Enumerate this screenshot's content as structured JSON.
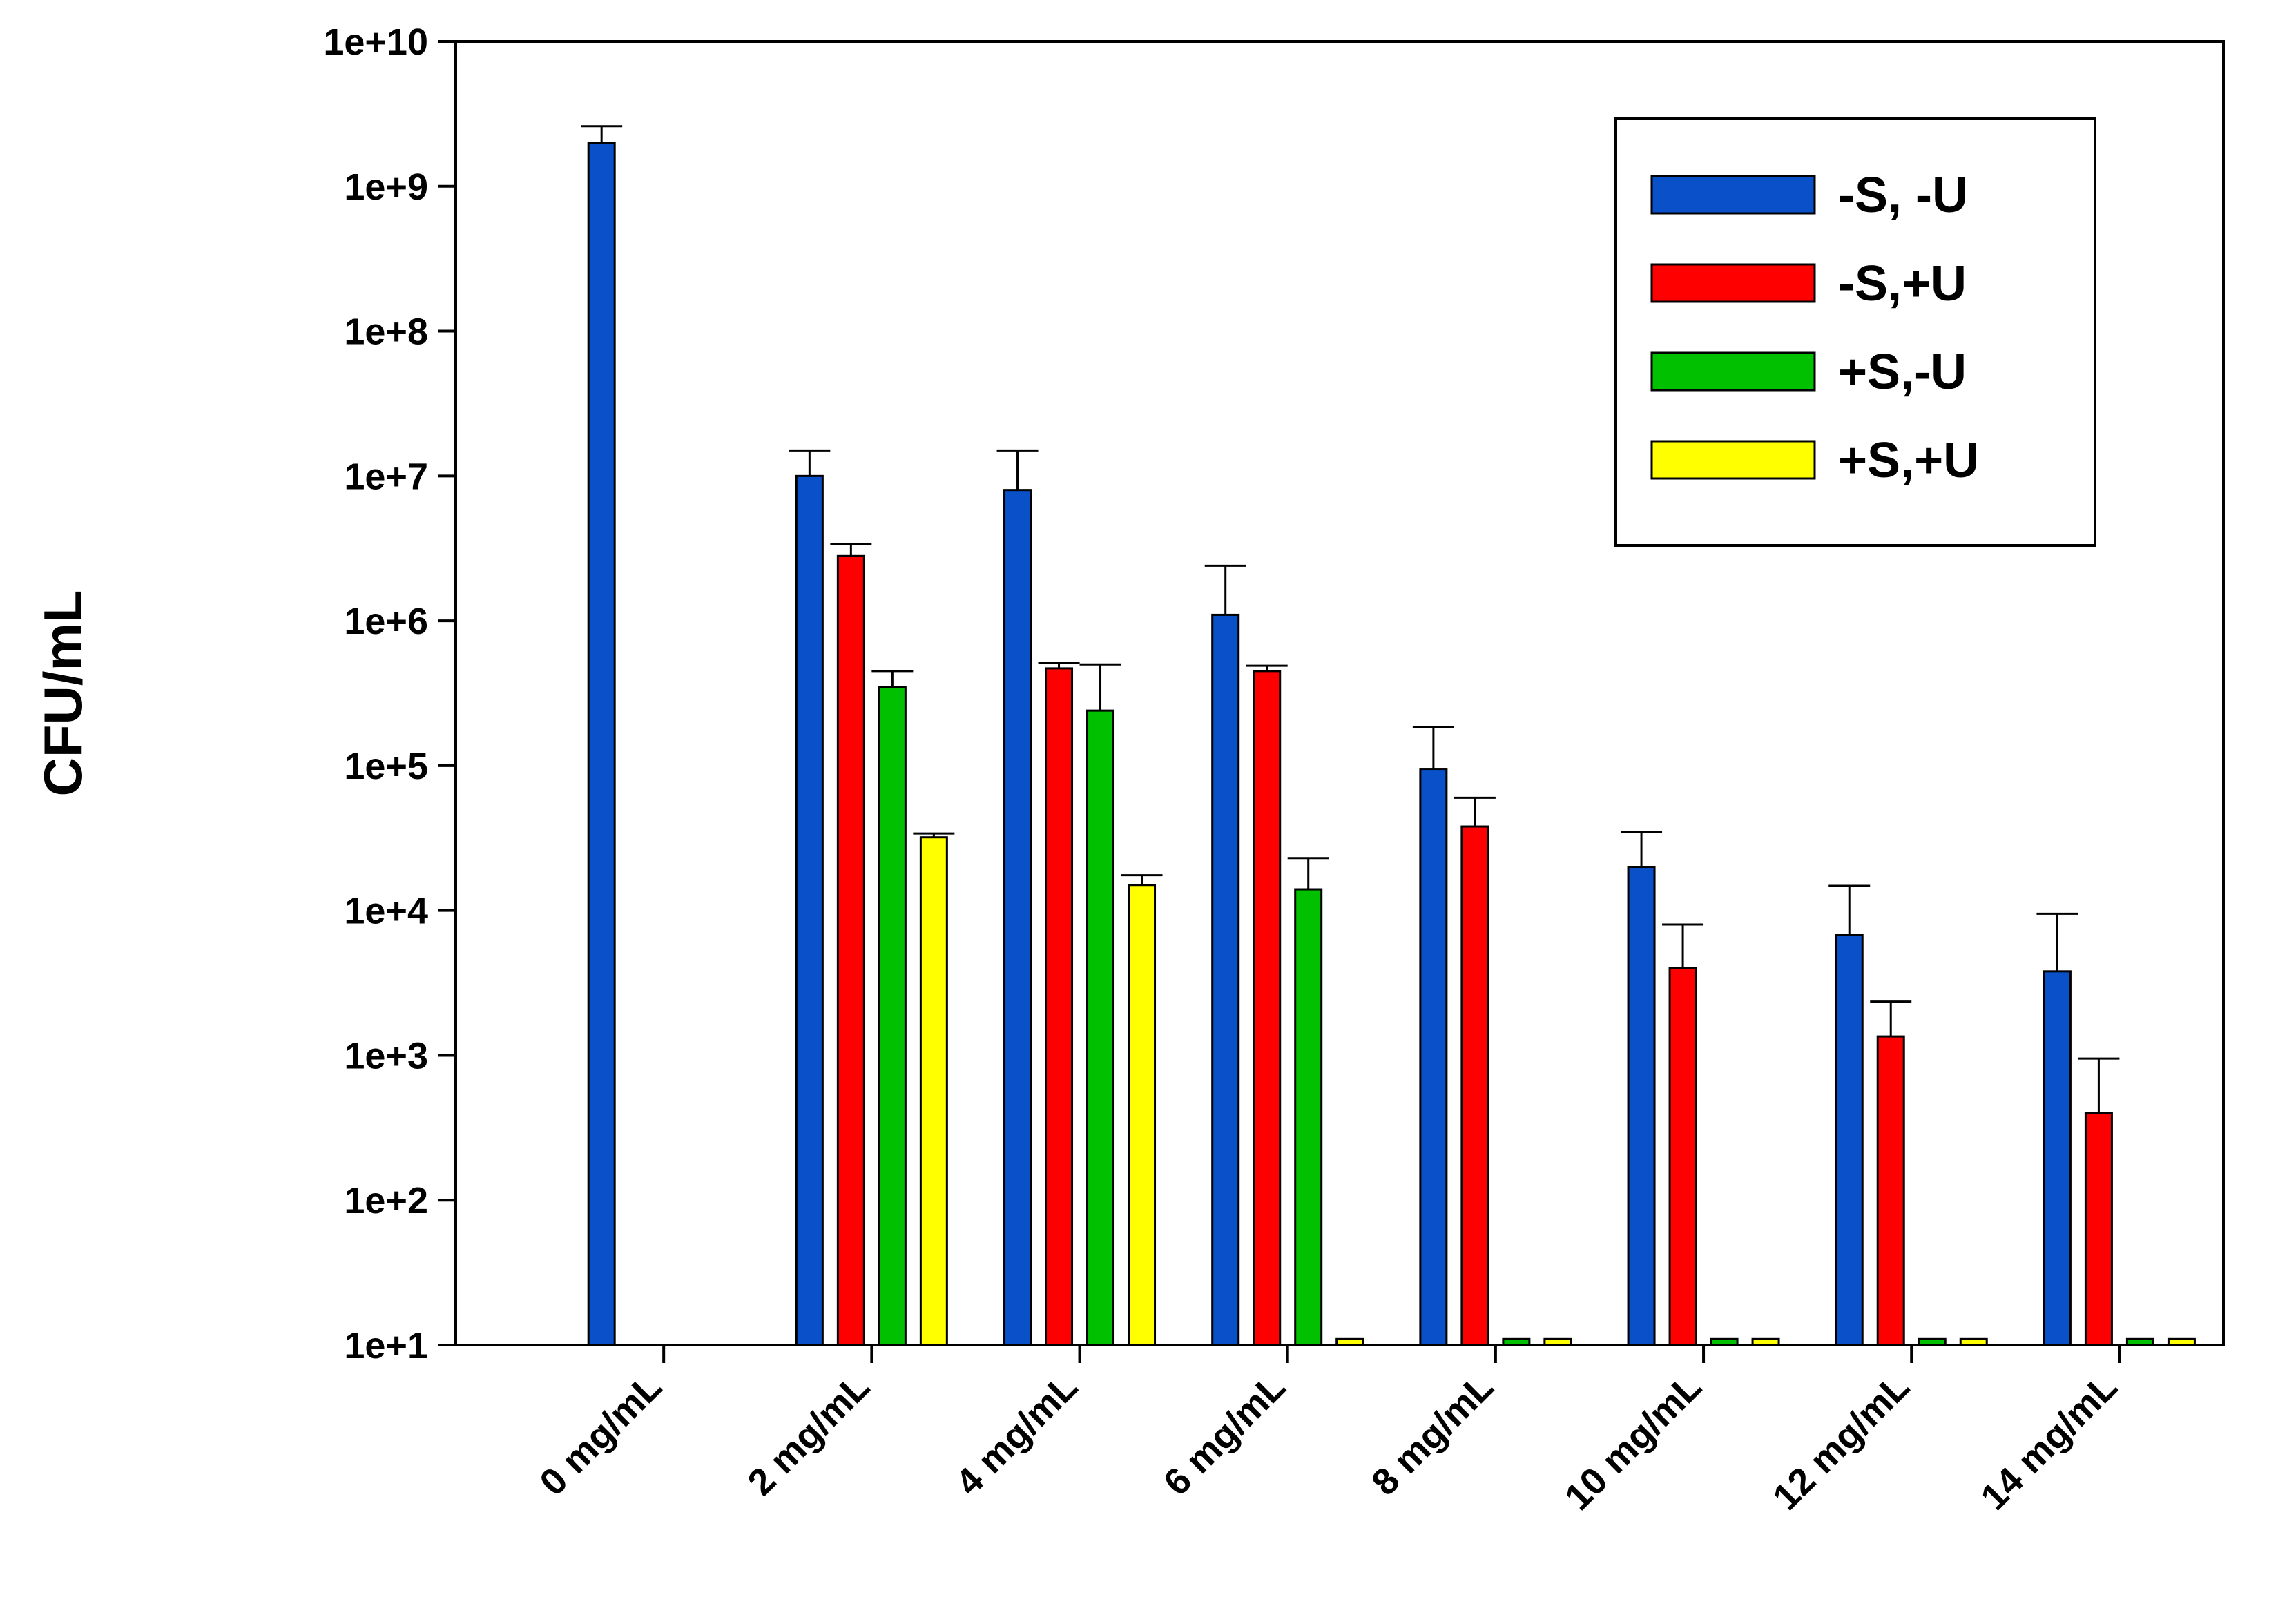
{
  "chart_data": {
    "type": "bar",
    "title": "",
    "xlabel": "",
    "ylabel": "CFU/mL",
    "yscale": "log",
    "ylim": [
      10,
      10000000000
    ],
    "yticks": [
      "1e+1",
      "1e+2",
      "1e+3",
      "1e+4",
      "1e+5",
      "1e+6",
      "1e+7",
      "1e+8",
      "1e+9",
      "1e+10"
    ],
    "categories": [
      "0 mg/mL",
      "2 mg/mL",
      "4 mg/mL",
      "6 mg/mL",
      "8 mg/mL",
      "10 mg/mL",
      "12 mg/mL",
      "14 mg/mL"
    ],
    "legend_position": "top-right",
    "series": [
      {
        "name": "-S, -U",
        "color": "#0a50c8",
        "values": [
          2000000000,
          10000000,
          8000000,
          1100000,
          95000,
          20000,
          6800,
          3800
        ],
        "errors": [
          600000000,
          5000000,
          7000000,
          1300000,
          90000,
          15000,
          8000,
          5700
        ]
      },
      {
        "name": "-S,+U",
        "color": "#ff0000",
        "values": [
          null,
          2800000,
          470000,
          450000,
          38000,
          4000,
          1350,
          400
        ],
        "errors": [
          null,
          600000,
          40000,
          40000,
          22000,
          4000,
          1000,
          550
        ]
      },
      {
        "name": "+S,-U",
        "color": "#00c000",
        "values": [
          null,
          350000,
          240000,
          14000,
          11,
          11,
          11,
          11
        ],
        "errors": [
          null,
          100000,
          260000,
          9000,
          0,
          0,
          0,
          0
        ]
      },
      {
        "name": "+S,+U",
        "color": "#ffff00",
        "values": [
          null,
          32000,
          15000,
          11,
          11,
          11,
          11,
          11
        ],
        "errors": [
          null,
          2000,
          2500,
          0,
          0,
          0,
          0,
          0
        ]
      }
    ]
  }
}
